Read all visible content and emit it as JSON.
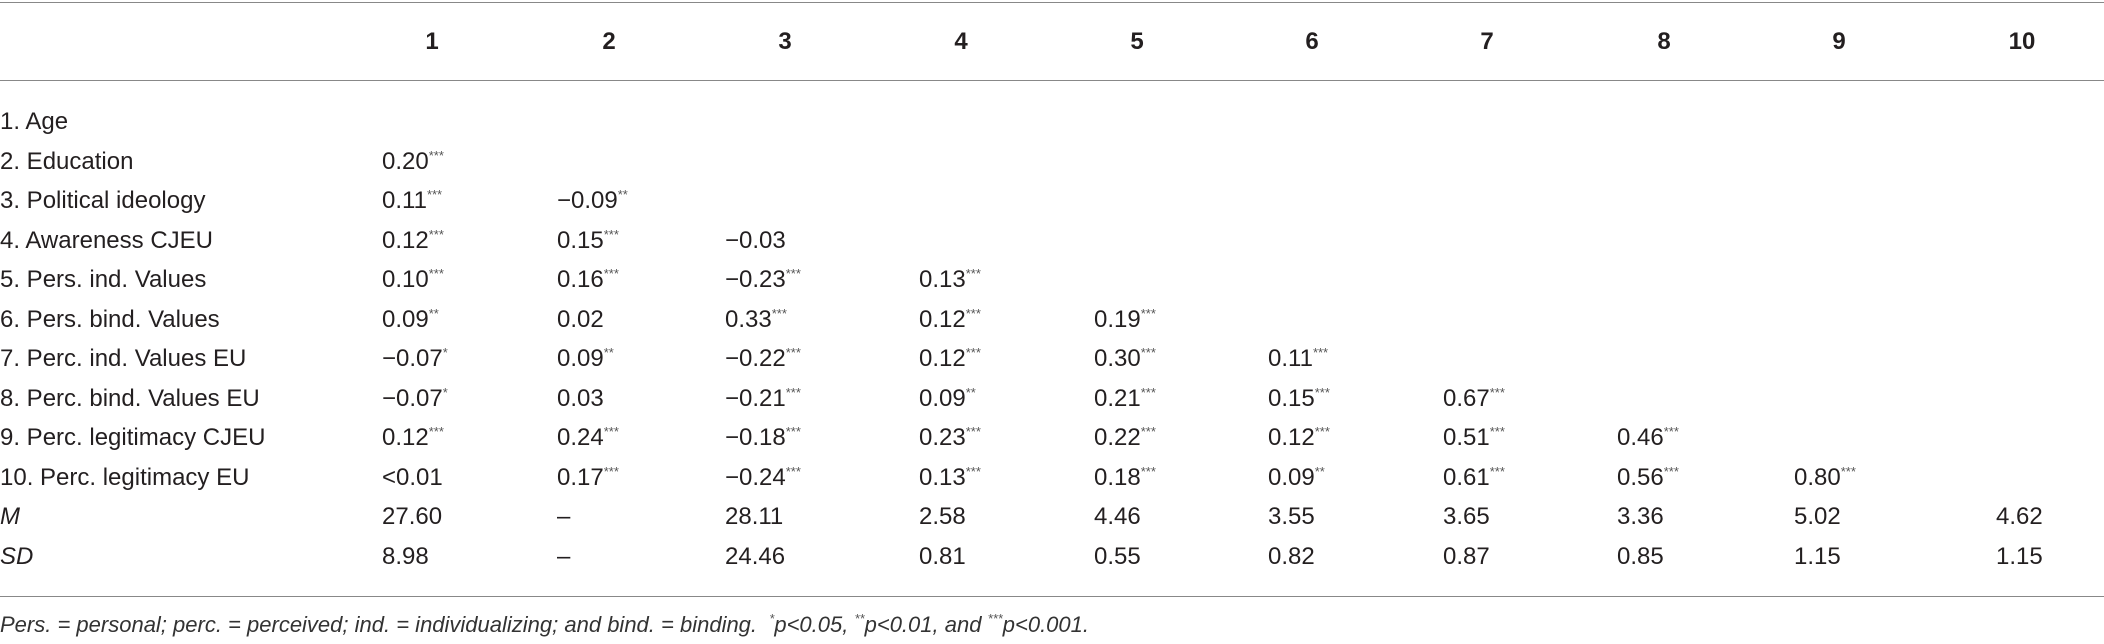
{
  "table": {
    "columns": [
      "1",
      "2",
      "3",
      "4",
      "5",
      "6",
      "7",
      "8",
      "9",
      "10"
    ],
    "rows": [
      {
        "label": "1. Age",
        "cells": [
          null,
          null,
          null,
          null,
          null,
          null,
          null,
          null,
          null,
          null
        ]
      },
      {
        "label": "2. Education",
        "cells": [
          {
            "value": "0.20",
            "sig": "***"
          },
          null,
          null,
          null,
          null,
          null,
          null,
          null,
          null,
          null
        ]
      },
      {
        "label": "3. Political ideology",
        "cells": [
          {
            "value": "0.11",
            "sig": "***"
          },
          {
            "value": "−0.09",
            "sig": "**"
          },
          null,
          null,
          null,
          null,
          null,
          null,
          null,
          null
        ]
      },
      {
        "label": "4. Awareness CJEU",
        "cells": [
          {
            "value": "0.12",
            "sig": "***"
          },
          {
            "value": "0.15",
            "sig": "***"
          },
          {
            "value": "−0.03"
          },
          null,
          null,
          null,
          null,
          null,
          null,
          null
        ]
      },
      {
        "label": "5. Pers. ind. Values",
        "cells": [
          {
            "value": "0.10",
            "sig": "***"
          },
          {
            "value": "0.16",
            "sig": "***"
          },
          {
            "value": "−0.23",
            "sig": "***"
          },
          {
            "value": "0.13",
            "sig": "***"
          },
          null,
          null,
          null,
          null,
          null,
          null
        ]
      },
      {
        "label": "6. Pers. bind. Values",
        "cells": [
          {
            "value": "0.09",
            "sig": "**"
          },
          {
            "value": "0.02"
          },
          {
            "value": "0.33",
            "sig": "***"
          },
          {
            "value": "0.12",
            "sig": "***"
          },
          {
            "value": "0.19",
            "sig": "***"
          },
          null,
          null,
          null,
          null,
          null
        ]
      },
      {
        "label": "7. Perc. ind. Values EU",
        "cells": [
          {
            "value": "−0.07",
            "sig": "*"
          },
          {
            "value": "0.09",
            "sig": "**"
          },
          {
            "value": "−0.22",
            "sig": "***"
          },
          {
            "value": "0.12",
            "sig": "***"
          },
          {
            "value": "0.30",
            "sig": "***"
          },
          {
            "value": "0.11",
            "sig": "***"
          },
          null,
          null,
          null,
          null
        ]
      },
      {
        "label": "8. Perc. bind. Values EU",
        "cells": [
          {
            "value": "−0.07",
            "sig": "*"
          },
          {
            "value": "0.03"
          },
          {
            "value": "−0.21",
            "sig": "***"
          },
          {
            "value": "0.09",
            "sig": "**"
          },
          {
            "value": "0.21",
            "sig": "***"
          },
          {
            "value": "0.15",
            "sig": "***"
          },
          {
            "value": "0.67",
            "sig": "***"
          },
          null,
          null,
          null
        ]
      },
      {
        "label": "9. Perc. legitimacy CJEU",
        "cells": [
          {
            "value": "0.12",
            "sig": "***"
          },
          {
            "value": "0.24",
            "sig": "***"
          },
          {
            "value": "−0.18",
            "sig": "***"
          },
          {
            "value": "0.23",
            "sig": "***"
          },
          {
            "value": "0.22",
            "sig": "***"
          },
          {
            "value": "0.12",
            "sig": "***"
          },
          {
            "value": "0.51",
            "sig": "***"
          },
          {
            "value": "0.46",
            "sig": "***"
          },
          null,
          null
        ]
      },
      {
        "label": "10. Perc. legitimacy EU",
        "cells": [
          {
            "value": "<0.01"
          },
          {
            "value": "0.17",
            "sig": "***"
          },
          {
            "value": "−0.24",
            "sig": "***"
          },
          {
            "value": "0.13",
            "sig": "***"
          },
          {
            "value": "0.18",
            "sig": "***"
          },
          {
            "value": "0.09",
            "sig": "**"
          },
          {
            "value": "0.61",
            "sig": "***"
          },
          {
            "value": "0.56",
            "sig": "***"
          },
          {
            "value": "0.80",
            "sig": "***"
          },
          null
        ]
      },
      {
        "label": "M",
        "italic": true,
        "cells": [
          {
            "value": "27.60"
          },
          {
            "value": "–"
          },
          {
            "value": "28.11"
          },
          {
            "value": "2.58"
          },
          {
            "value": "4.46"
          },
          {
            "value": "3.55"
          },
          {
            "value": "3.65"
          },
          {
            "value": "3.36"
          },
          {
            "value": "5.02"
          },
          {
            "value": "4.62"
          }
        ]
      },
      {
        "label": "SD",
        "italic": true,
        "cells": [
          {
            "value": "8.98"
          },
          {
            "value": "–"
          },
          {
            "value": "24.46"
          },
          {
            "value": "0.81"
          },
          {
            "value": "0.55"
          },
          {
            "value": "0.82"
          },
          {
            "value": "0.87"
          },
          {
            "value": "0.85"
          },
          {
            "value": "1.15"
          },
          {
            "value": "1.15"
          }
        ]
      }
    ],
    "footnote": {
      "text": "Pers. = personal; perc. = perceived; ind. = individualizing; and bind. = binding.",
      "notes": [
        {
          "sig": "*",
          "text": "p<0.05, "
        },
        {
          "sig": "**",
          "text": "p<0.01, and "
        },
        {
          "sig": "***",
          "text": "p<0.001."
        }
      ]
    }
  }
}
